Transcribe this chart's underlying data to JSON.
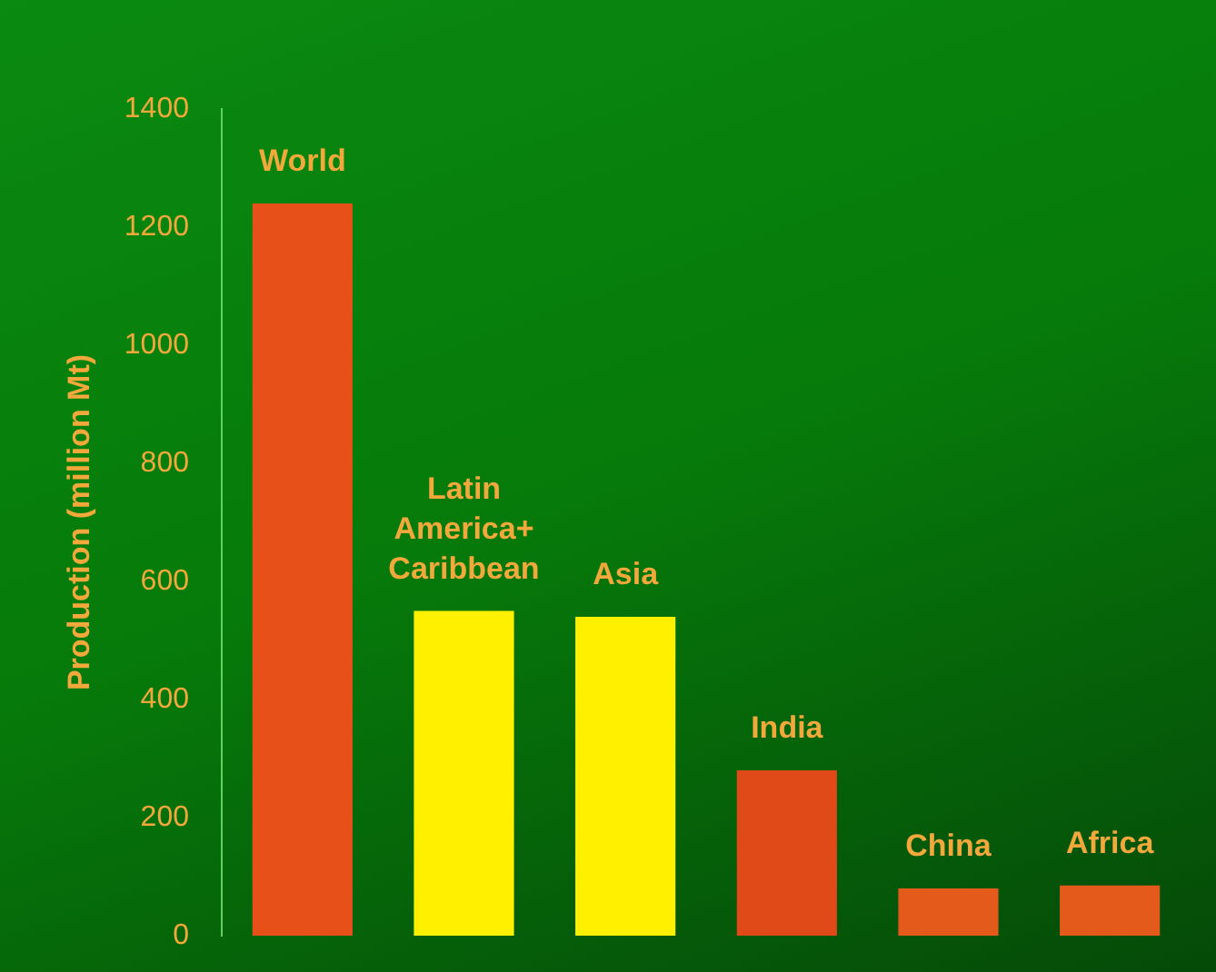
{
  "chart_data": {
    "type": "bar",
    "ylabel": "Production (million Mt)",
    "categories": [
      "World",
      "Latin America+ Caribbean",
      "Asia",
      "India",
      "China",
      "Africa"
    ],
    "values": [
      1240,
      550,
      540,
      280,
      80,
      85
    ],
    "colors": [
      "#e8501a",
      "#fff000",
      "#fff000",
      "#e04a18",
      "#e45a1a",
      "#e45a1a"
    ],
    "ylim": [
      0,
      1400
    ],
    "yticks": [
      0,
      200,
      400,
      600,
      800,
      1000,
      1200,
      1400
    ],
    "grid": false,
    "legend": false,
    "tick_labels": "y"
  }
}
